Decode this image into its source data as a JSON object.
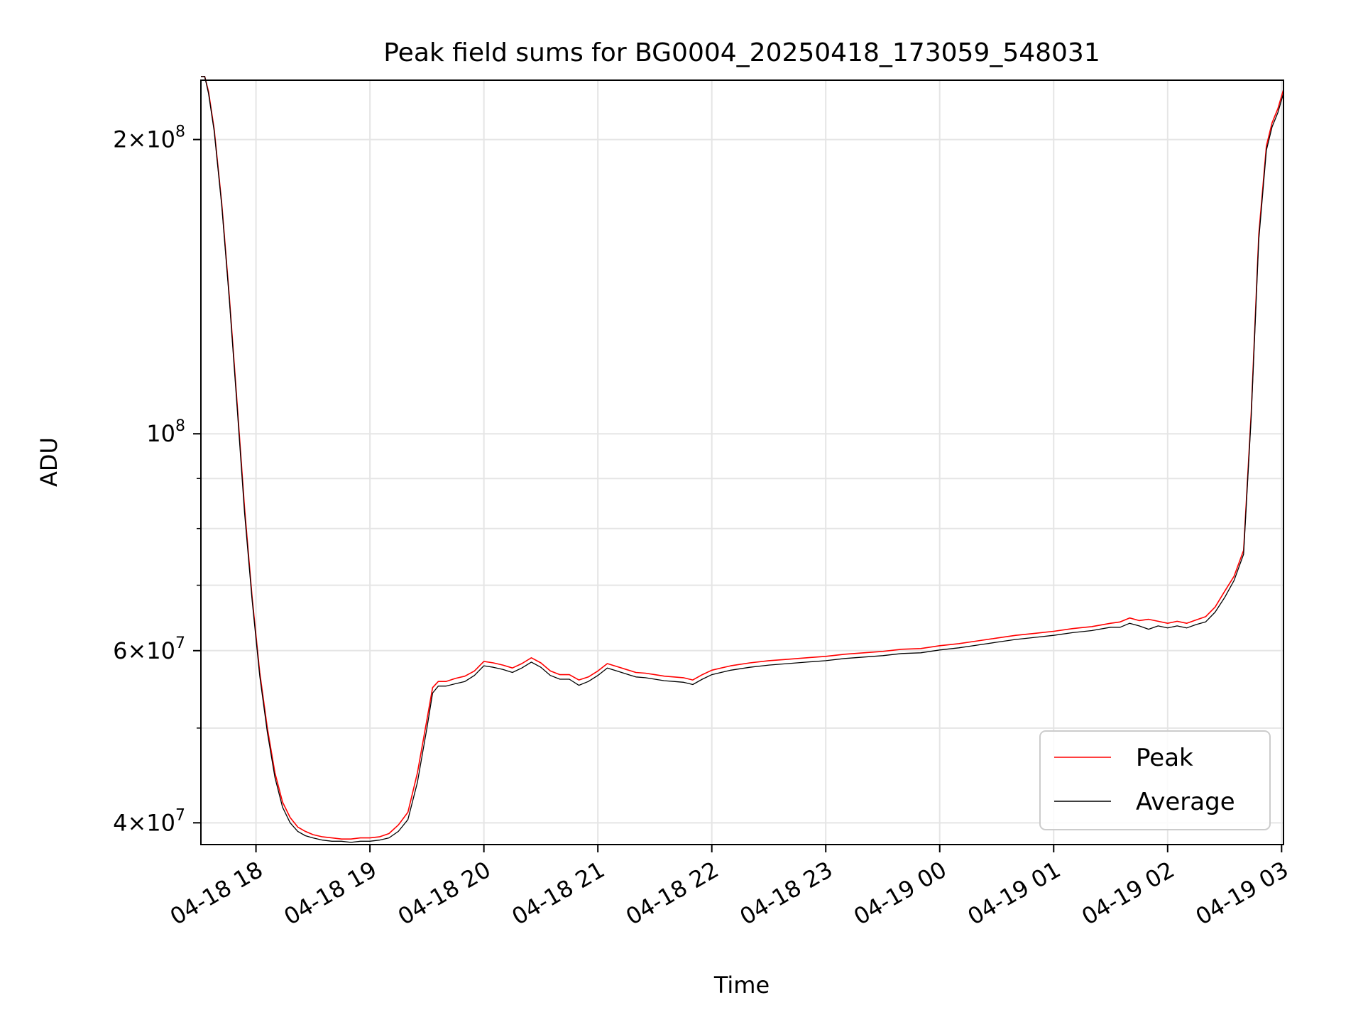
{
  "chart_data": {
    "type": "line",
    "title": "Peak field sums for BG0004_20250418_173059_548031",
    "xlabel": "Time",
    "ylabel": "ADU",
    "y_scale": "log",
    "ylim": [
      38000000,
      230000000
    ],
    "xlim": [
      "2025-04-18 17:31",
      "2025-04-19 03:01"
    ],
    "grid": true,
    "legend_position": "lower right",
    "x_ticks": [
      {
        "at": "2025-04-18 18:00",
        "label": "04-18 18"
      },
      {
        "at": "2025-04-18 19:00",
        "label": "04-18 19"
      },
      {
        "at": "2025-04-18 20:00",
        "label": "04-18 20"
      },
      {
        "at": "2025-04-18 21:00",
        "label": "04-18 21"
      },
      {
        "at": "2025-04-18 22:00",
        "label": "04-18 22"
      },
      {
        "at": "2025-04-18 23:00",
        "label": "04-18 23"
      },
      {
        "at": "2025-04-19 00:00",
        "label": "04-19 00"
      },
      {
        "at": "2025-04-19 01:00",
        "label": "04-19 01"
      },
      {
        "at": "2025-04-19 02:00",
        "label": "04-19 02"
      },
      {
        "at": "2025-04-19 03:00",
        "label": "04-19 03"
      }
    ],
    "y_ticks_major": [
      {
        "value": 40000000,
        "base": "4",
        "exp": "7"
      },
      {
        "value": 60000000,
        "base": "6",
        "exp": "7"
      },
      {
        "value": 100000000,
        "base": "",
        "exp": "8"
      },
      {
        "value": 200000000,
        "base": "2",
        "exp": "8"
      }
    ],
    "y_ticks_minor": [
      50000000,
      70000000,
      80000000,
      90000000
    ],
    "series": [
      {
        "name": "Peak",
        "color": "#ff0000",
        "x": [
          "2025-04-18 17:31",
          "2025-04-18 17:33",
          "2025-04-18 17:35",
          "2025-04-18 17:38",
          "2025-04-18 17:42",
          "2025-04-18 17:46",
          "2025-04-18 17:50",
          "2025-04-18 17:54",
          "2025-04-18 17:58",
          "2025-04-18 18:02",
          "2025-04-18 18:06",
          "2025-04-18 18:10",
          "2025-04-18 18:14",
          "2025-04-18 18:18",
          "2025-04-18 18:22",
          "2025-04-18 18:26",
          "2025-04-18 18:30",
          "2025-04-18 18:35",
          "2025-04-18 18:40",
          "2025-04-18 18:45",
          "2025-04-18 18:50",
          "2025-04-18 18:55",
          "2025-04-18 19:00",
          "2025-04-18 19:05",
          "2025-04-18 19:10",
          "2025-04-18 19:15",
          "2025-04-18 19:20",
          "2025-04-18 19:25",
          "2025-04-18 19:30",
          "2025-04-18 19:33",
          "2025-04-18 19:36",
          "2025-04-18 19:40",
          "2025-04-18 19:45",
          "2025-04-18 19:50",
          "2025-04-18 19:55",
          "2025-04-18 20:00",
          "2025-04-18 20:05",
          "2025-04-18 20:10",
          "2025-04-18 20:15",
          "2025-04-18 20:20",
          "2025-04-18 20:25",
          "2025-04-18 20:30",
          "2025-04-18 20:35",
          "2025-04-18 20:40",
          "2025-04-18 20:45",
          "2025-04-18 20:50",
          "2025-04-18 20:55",
          "2025-04-18 21:00",
          "2025-04-18 21:05",
          "2025-04-18 21:10",
          "2025-04-18 21:15",
          "2025-04-18 21:20",
          "2025-04-18 21:25",
          "2025-04-18 21:30",
          "2025-04-18 21:35",
          "2025-04-18 21:40",
          "2025-04-18 21:45",
          "2025-04-18 21:50",
          "2025-04-18 21:55",
          "2025-04-18 22:00",
          "2025-04-18 22:10",
          "2025-04-18 22:20",
          "2025-04-18 22:30",
          "2025-04-18 22:40",
          "2025-04-18 22:50",
          "2025-04-18 23:00",
          "2025-04-18 23:10",
          "2025-04-18 23:20",
          "2025-04-18 23:30",
          "2025-04-18 23:40",
          "2025-04-18 23:50",
          "2025-04-19 00:00",
          "2025-04-19 00:10",
          "2025-04-19 00:20",
          "2025-04-19 00:30",
          "2025-04-19 00:40",
          "2025-04-19 00:50",
          "2025-04-19 01:00",
          "2025-04-19 01:10",
          "2025-04-19 01:20",
          "2025-04-19 01:30",
          "2025-04-19 01:35",
          "2025-04-19 01:40",
          "2025-04-19 01:45",
          "2025-04-19 01:50",
          "2025-04-19 01:55",
          "2025-04-19 02:00",
          "2025-04-19 02:05",
          "2025-04-19 02:10",
          "2025-04-19 02:15",
          "2025-04-19 02:20",
          "2025-04-19 02:25",
          "2025-04-19 02:30",
          "2025-04-19 02:35",
          "2025-04-19 02:40",
          "2025-04-19 02:44",
          "2025-04-19 02:48",
          "2025-04-19 02:52",
          "2025-04-19 02:55",
          "2025-04-19 02:58",
          "2025-04-19 03:01"
        ],
        "y": [
          232000000,
          232000000,
          224000000,
          205000000,
          172000000,
          138000000,
          108000000,
          84000000,
          68000000,
          57000000,
          50000000,
          45000000,
          42000000,
          40500000,
          39600000,
          39200000,
          38900000,
          38700000,
          38600000,
          38500000,
          38500000,
          38600000,
          38600000,
          38700000,
          39000000,
          39800000,
          41000000,
          45000000,
          51000000,
          55000000,
          55800000,
          55800000,
          56200000,
          56500000,
          57200000,
          58500000,
          58300000,
          58000000,
          57600000,
          58200000,
          59000000,
          58300000,
          57200000,
          56700000,
          56700000,
          56000000,
          56400000,
          57200000,
          58200000,
          57800000,
          57400000,
          57000000,
          56900000,
          56700000,
          56500000,
          56400000,
          56300000,
          56000000,
          56700000,
          57300000,
          57900000,
          58300000,
          58600000,
          58800000,
          59000000,
          59200000,
          59500000,
          59700000,
          59900000,
          60200000,
          60300000,
          60700000,
          61000000,
          61400000,
          61800000,
          62200000,
          62500000,
          62800000,
          63200000,
          63500000,
          64000000,
          64200000,
          64800000,
          64400000,
          64600000,
          64300000,
          64000000,
          64300000,
          64000000,
          64500000,
          65000000,
          66500000,
          69000000,
          71500000,
          76000000,
          105000000,
          160000000,
          197000000,
          208000000,
          215000000,
          225000000
        ]
      },
      {
        "name": "Average",
        "color": "#000000",
        "x": [
          "2025-04-18 17:31",
          "2025-04-18 17:33",
          "2025-04-18 17:35",
          "2025-04-18 17:38",
          "2025-04-18 17:42",
          "2025-04-18 17:46",
          "2025-04-18 17:50",
          "2025-04-18 17:54",
          "2025-04-18 17:58",
          "2025-04-18 18:02",
          "2025-04-18 18:06",
          "2025-04-18 18:10",
          "2025-04-18 18:14",
          "2025-04-18 18:18",
          "2025-04-18 18:22",
          "2025-04-18 18:26",
          "2025-04-18 18:30",
          "2025-04-18 18:35",
          "2025-04-18 18:40",
          "2025-04-18 18:45",
          "2025-04-18 18:50",
          "2025-04-18 18:55",
          "2025-04-18 19:00",
          "2025-04-18 19:05",
          "2025-04-18 19:10",
          "2025-04-18 19:15",
          "2025-04-18 19:20",
          "2025-04-18 19:25",
          "2025-04-18 19:30",
          "2025-04-18 19:33",
          "2025-04-18 19:36",
          "2025-04-18 19:40",
          "2025-04-18 19:45",
          "2025-04-18 19:50",
          "2025-04-18 19:55",
          "2025-04-18 20:00",
          "2025-04-18 20:05",
          "2025-04-18 20:10",
          "2025-04-18 20:15",
          "2025-04-18 20:20",
          "2025-04-18 20:25",
          "2025-04-18 20:30",
          "2025-04-18 20:35",
          "2025-04-18 20:40",
          "2025-04-18 20:45",
          "2025-04-18 20:50",
          "2025-04-18 20:55",
          "2025-04-18 21:00",
          "2025-04-18 21:05",
          "2025-04-18 21:10",
          "2025-04-18 21:15",
          "2025-04-18 21:20",
          "2025-04-18 21:25",
          "2025-04-18 21:30",
          "2025-04-18 21:35",
          "2025-04-18 21:40",
          "2025-04-18 21:45",
          "2025-04-18 21:50",
          "2025-04-18 21:55",
          "2025-04-18 22:00",
          "2025-04-18 22:10",
          "2025-04-18 22:20",
          "2025-04-18 22:30",
          "2025-04-18 22:40",
          "2025-04-18 22:50",
          "2025-04-18 23:00",
          "2025-04-18 23:10",
          "2025-04-18 23:20",
          "2025-04-18 23:30",
          "2025-04-18 23:40",
          "2025-04-18 23:50",
          "2025-04-19 00:00",
          "2025-04-19 00:10",
          "2025-04-19 00:20",
          "2025-04-19 00:30",
          "2025-04-19 00:40",
          "2025-04-19 00:50",
          "2025-04-19 01:00",
          "2025-04-19 01:10",
          "2025-04-19 01:20",
          "2025-04-19 01:30",
          "2025-04-19 01:35",
          "2025-04-19 01:40",
          "2025-04-19 01:45",
          "2025-04-19 01:50",
          "2025-04-19 01:55",
          "2025-04-19 02:00",
          "2025-04-19 02:05",
          "2025-04-19 02:10",
          "2025-04-19 02:15",
          "2025-04-19 02:20",
          "2025-04-19 02:25",
          "2025-04-19 02:30",
          "2025-04-19 02:35",
          "2025-04-19 02:40",
          "2025-04-19 02:44",
          "2025-04-19 02:48",
          "2025-04-19 02:52",
          "2025-04-19 02:55",
          "2025-04-19 02:58",
          "2025-04-19 03:01"
        ],
        "y": [
          232000000,
          232000000,
          223000000,
          204000000,
          171000000,
          137000000,
          107000000,
          83000000,
          67500000,
          56500000,
          49500000,
          44500000,
          41500000,
          40000000,
          39200000,
          38800000,
          38600000,
          38400000,
          38300000,
          38300000,
          38200000,
          38300000,
          38300000,
          38400000,
          38600000,
          39200000,
          40300000,
          44000000,
          50000000,
          54300000,
          55200000,
          55200000,
          55500000,
          55800000,
          56600000,
          57900000,
          57700000,
          57400000,
          57000000,
          57600000,
          58400000,
          57700000,
          56600000,
          56100000,
          56100000,
          55300000,
          55800000,
          56600000,
          57600000,
          57200000,
          56800000,
          56400000,
          56300000,
          56100000,
          55900000,
          55800000,
          55700000,
          55400000,
          56100000,
          56700000,
          57300000,
          57700000,
          58000000,
          58200000,
          58400000,
          58600000,
          58900000,
          59100000,
          59300000,
          59600000,
          59700000,
          60100000,
          60400000,
          60800000,
          61200000,
          61600000,
          61900000,
          62200000,
          62600000,
          62900000,
          63400000,
          63400000,
          64000000,
          63600000,
          63100000,
          63600000,
          63300000,
          63600000,
          63300000,
          63800000,
          64200000,
          65700000,
          68000000,
          70800000,
          75300000,
          104000000,
          158000000,
          195000000,
          206000000,
          213000000,
          223000000
        ]
      }
    ]
  }
}
